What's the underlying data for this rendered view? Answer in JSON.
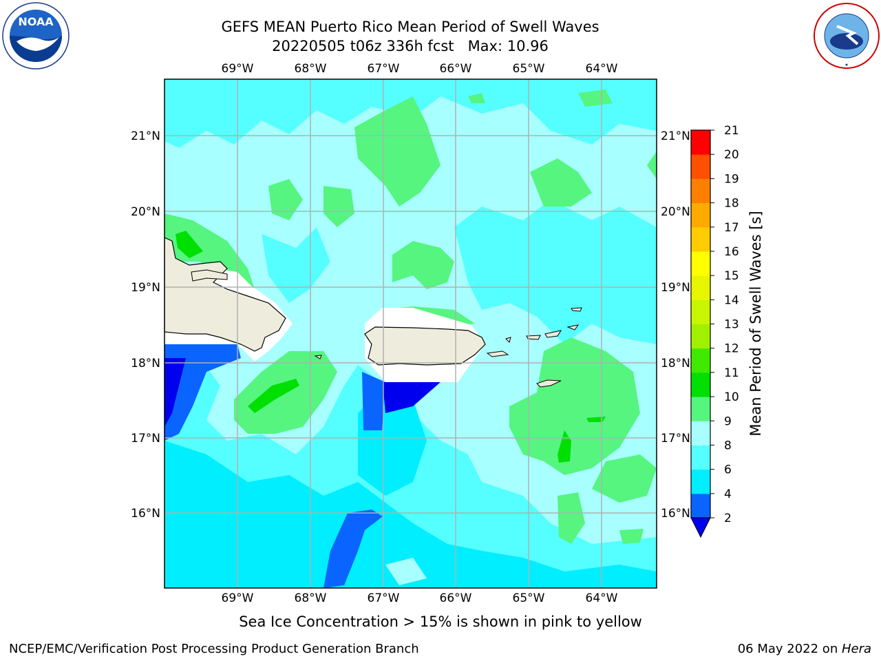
{
  "header": {
    "title_line1": "GEFS MEAN Puerto Rico Mean Period of Swell Waves",
    "title_line2": "20220505 t06z 336h fcst   Max: 10.96"
  },
  "logos": {
    "left": {
      "text": "NOAA",
      "ring_text": "NATIONAL OCEANIC AND ATMOSPHERIC ADMINISTRATION · U.S. DEPARTMENT OF COMMERCE",
      "icon": "noaa-logo"
    },
    "right": {
      "ring_text": "NATIONAL WEATHER SERVICE",
      "icon": "nws-logo"
    }
  },
  "map": {
    "lon_labels": [
      "69°W",
      "68°W",
      "67°W",
      "66°W",
      "65°W",
      "64°W"
    ],
    "lat_labels": [
      "21°N",
      "20°N",
      "19°N",
      "18°N",
      "17°N",
      "16°N"
    ]
  },
  "colorbar": {
    "label": "Mean Period of Swell Waves [s]",
    "ticks": [
      "2",
      "4",
      "6",
      "8",
      "9",
      "10",
      "11",
      "12",
      "13",
      "14",
      "15",
      "16",
      "17",
      "18",
      "19",
      "20",
      "21"
    ],
    "colors": [
      "#0000ff",
      "#0a64ff",
      "#00eeff",
      "#55ffff",
      "#a8ffff",
      "#55f580",
      "#22e440",
      "#00e000",
      "#55ee00",
      "#a0f000",
      "#c8f500",
      "#e6f500",
      "#ffff00",
      "#ffd000",
      "#ffaa00",
      "#ff7f00",
      "#ff5000",
      "#ff2000",
      "#ff0000"
    ],
    "bands": [
      {
        "from": "2",
        "to": "4",
        "color": "#0a64ff"
      },
      {
        "from": "4",
        "to": "6",
        "color": "#00eeff"
      },
      {
        "from": "6",
        "to": "8",
        "color": "#55ffff"
      },
      {
        "from": "8",
        "to": "9",
        "color": "#a8ffff"
      },
      {
        "from": "9",
        "to": "10",
        "color": "#55f580"
      },
      {
        "from": "10",
        "to": "11",
        "color": "#00e000"
      },
      {
        "from": "11",
        "to": "12",
        "color": "#40ea00"
      },
      {
        "from": "12",
        "to": "13",
        "color": "#a0f000"
      },
      {
        "from": "13",
        "to": "14",
        "color": "#c8f500"
      },
      {
        "from": "14",
        "to": "15",
        "color": "#e6f500"
      },
      {
        "from": "15",
        "to": "16",
        "color": "#ffff00"
      },
      {
        "from": "16",
        "to": "17",
        "color": "#ffcc00"
      },
      {
        "from": "17",
        "to": "18",
        "color": "#ffaa00"
      },
      {
        "from": "18",
        "to": "19",
        "color": "#ff8000"
      },
      {
        "from": "19",
        "to": "20",
        "color": "#ff5000"
      },
      {
        "from": "20",
        "to": "21",
        "color": "#ff0000"
      }
    ]
  },
  "footer": {
    "note": "Sea Ice Concentration > 15% is shown in pink to yellow",
    "credit": "NCEP/EMC/Verification Post Processing Product Generation Branch",
    "date": "06 May 2022 on ",
    "host": "Hera"
  }
}
